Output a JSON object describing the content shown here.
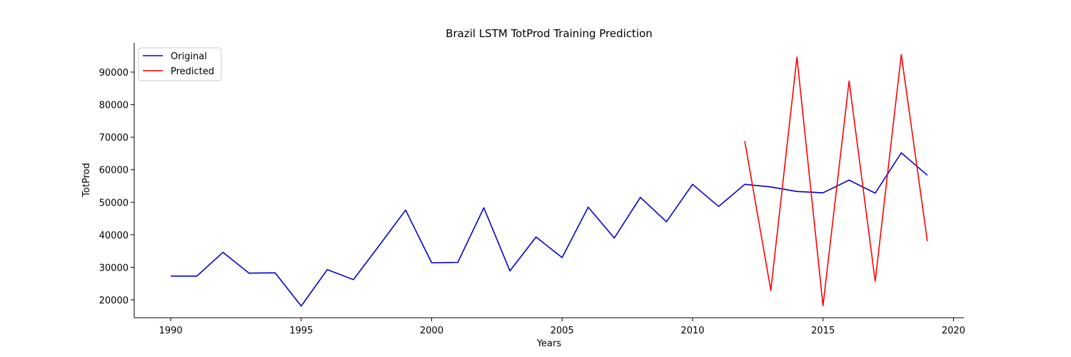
{
  "chart_data": {
    "type": "line",
    "title": "Brazil LSTM TotProd Training Prediction",
    "xlabel": "Years",
    "ylabel": "TotProd",
    "xlim": [
      1988.6,
      2020.4
    ],
    "ylim": [
      14500,
      99000
    ],
    "xticks": [
      1990,
      1995,
      2000,
      2005,
      2010,
      2015,
      2020
    ],
    "yticks": [
      20000,
      30000,
      40000,
      50000,
      60000,
      70000,
      80000,
      90000
    ],
    "grid": false,
    "legend_position": "top-left",
    "series": [
      {
        "name": "Original",
        "color": "#0000cc",
        "x": [
          1990,
          1991,
          1992,
          1993,
          1994,
          1995,
          1996,
          1997,
          1998,
          1999,
          2000,
          2001,
          2002,
          2003,
          2004,
          2005,
          2006,
          2007,
          2008,
          2009,
          2010,
          2011,
          2012,
          2013,
          2014,
          2015,
          2016,
          2017,
          2018,
          2019
        ],
        "y": [
          27300,
          27300,
          34600,
          28200,
          28300,
          18100,
          29300,
          26200,
          36800,
          47600,
          31400,
          31500,
          48300,
          28900,
          39300,
          33000,
          48500,
          39000,
          51500,
          44000,
          55500,
          48700,
          55500,
          54700,
          53300,
          52900,
          56800,
          52800,
          65200,
          58300
        ]
      },
      {
        "name": "Predicted",
        "color": "#ff0000",
        "x": [
          2012,
          2013,
          2014,
          2015,
          2016,
          2017,
          2018,
          2019
        ],
        "y": [
          68800,
          22900,
          94600,
          18200,
          87300,
          25700,
          95400,
          38000
        ]
      }
    ]
  }
}
